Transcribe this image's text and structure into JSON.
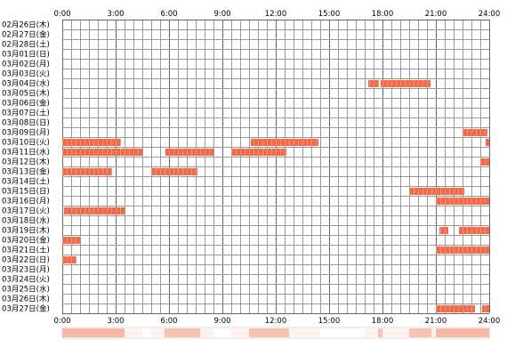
{
  "chart_data": {
    "type": "timeline",
    "x_unit": "hour",
    "x_range": [
      0,
      24
    ],
    "x_tick_labels": [
      "0:00",
      "3:00",
      "6:00",
      "9:00",
      "12:00",
      "15:00",
      "18:00",
      "21:00",
      "24:00"
    ],
    "rows": [
      {
        "label": "02月26日(木)",
        "intervals": []
      },
      {
        "label": "02月27日(金)",
        "intervals": []
      },
      {
        "label": "02月28日(土)",
        "intervals": []
      },
      {
        "label": "03月01日(日)",
        "intervals": []
      },
      {
        "label": "03月02日(月)",
        "intervals": []
      },
      {
        "label": "03月03日(火)",
        "intervals": []
      },
      {
        "label": "03月04日(水)",
        "intervals": [
          [
            17.2,
            17.8
          ],
          [
            17.9,
            20.7
          ]
        ]
      },
      {
        "label": "03月05日(木)",
        "intervals": []
      },
      {
        "label": "03月06日(金)",
        "intervals": []
      },
      {
        "label": "03月07日(土)",
        "intervals": []
      },
      {
        "label": "03月08日(日)",
        "intervals": []
      },
      {
        "label": "03月09日(月)",
        "intervals": [
          [
            22.5,
            23.9
          ]
        ]
      },
      {
        "label": "03月10日(火)",
        "intervals": [
          [
            0.0,
            3.3
          ],
          [
            10.6,
            14.4
          ],
          [
            23.8,
            24.0
          ]
        ]
      },
      {
        "label": "03月11日(水)",
        "intervals": [
          [
            0.0,
            4.5
          ],
          [
            5.8,
            8.5
          ],
          [
            9.5,
            12.6
          ]
        ]
      },
      {
        "label": "03月12日(木)",
        "intervals": [
          [
            23.5,
            24.0
          ]
        ]
      },
      {
        "label": "03月13日(金)",
        "intervals": [
          [
            0.0,
            2.8
          ],
          [
            5.0,
            7.6
          ]
        ]
      },
      {
        "label": "03月14日(土)",
        "intervals": []
      },
      {
        "label": "03月15日(日)",
        "intervals": [
          [
            19.5,
            22.6
          ]
        ]
      },
      {
        "label": "03月16日(月)",
        "intervals": [
          [
            21.0,
            24.0
          ]
        ]
      },
      {
        "label": "03月17日(火)",
        "intervals": [
          [
            0.1,
            3.5
          ]
        ]
      },
      {
        "label": "03月18日(水)",
        "intervals": []
      },
      {
        "label": "03月19日(木)",
        "intervals": [
          [
            21.2,
            21.7
          ],
          [
            22.3,
            24.0
          ]
        ]
      },
      {
        "label": "03月20日(金)",
        "intervals": [
          [
            0.0,
            1.0
          ]
        ]
      },
      {
        "label": "03月21日(土)",
        "intervals": [
          [
            21.0,
            24.0
          ]
        ]
      },
      {
        "label": "03月22日(日)",
        "intervals": [
          [
            0.0,
            0.8
          ]
        ]
      },
      {
        "label": "03月23日(月)",
        "intervals": []
      },
      {
        "label": "03月24日(火)",
        "intervals": []
      },
      {
        "label": "03月25日(水)",
        "intervals": []
      },
      {
        "label": "03月26日(木)",
        "intervals": []
      },
      {
        "label": "03月27日(金)",
        "intervals": [
          [
            21.0,
            23.2
          ],
          [
            23.6,
            24.0
          ]
        ]
      }
    ],
    "grid": true,
    "colors": {
      "bar": "#f26a4a",
      "bar_light": "#f8a07a",
      "grid": "#999999",
      "border": "#666666",
      "summary_high": "#f7b8a5",
      "summary_low": "#fdeae3"
    }
  }
}
